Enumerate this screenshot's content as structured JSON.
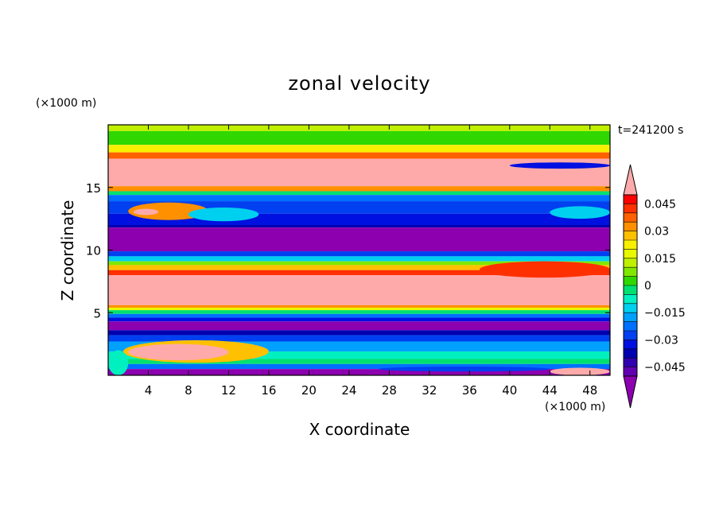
{
  "chart_data": {
    "type": "heatmap",
    "title": "zonal velocity",
    "xlabel": "X coordinate",
    "ylabel": "Z coordinate",
    "x_unit": "(×1000 m)",
    "y_unit": "(×1000 m)",
    "time_label": "t=241200 s",
    "xlim": [
      0,
      50
    ],
    "ylim": [
      0,
      20
    ],
    "x_ticks": [
      4,
      8,
      12,
      16,
      20,
      24,
      28,
      32,
      36,
      40,
      44,
      48
    ],
    "y_ticks": [
      5,
      10,
      15
    ],
    "colorbar": {
      "ticks": [
        0.045,
        0.03,
        0.015,
        0,
        -0.015,
        -0.03,
        -0.045
      ],
      "tick_labels": [
        "0.045",
        "0.03",
        "0.015",
        "0",
        "−0.015",
        "−0.03",
        "−0.045"
      ],
      "levels": [
        0.05,
        0.045,
        0.04,
        0.035,
        0.03,
        0.025,
        0.02,
        0.015,
        0.01,
        0.005,
        0,
        -0.005,
        -0.01,
        -0.015,
        -0.02,
        -0.025,
        -0.03,
        -0.035,
        -0.04,
        -0.045,
        -0.05
      ],
      "colors": [
        "#ff0000",
        "#ff3000",
        "#ff6000",
        "#ff9000",
        "#ffc000",
        "#f8f000",
        "#e8f800",
        "#c0f000",
        "#80e800",
        "#30d800",
        "#00e070",
        "#00f0c0",
        "#00d0f0",
        "#00a0ff",
        "#0070ff",
        "#0040f0",
        "#0010e0",
        "#0000b0",
        "#3000b0",
        "#6000b0"
      ],
      "over_color": "#ffaaaa",
      "under_color": "#8c00b0"
    },
    "bands": [
      {
        "z_bottom": 19.5,
        "z_top": 20,
        "color": "#c0f000"
      },
      {
        "z_bottom": 18.4,
        "z_top": 19.5,
        "color": "#30d800"
      },
      {
        "z_bottom": 17.8,
        "z_top": 18.4,
        "color": "#f8f000"
      },
      {
        "z_bottom": 17.3,
        "z_top": 17.8,
        "color": "#ff6000"
      },
      {
        "z_bottom": 15.1,
        "z_top": 17.3,
        "color": "#ffaaaa"
      },
      {
        "z_bottom": 14.7,
        "z_top": 15.1,
        "color": "#ff9000"
      },
      {
        "z_bottom": 14.4,
        "z_top": 14.7,
        "color": "#00e070"
      },
      {
        "z_bottom": 13.9,
        "z_top": 14.4,
        "color": "#0070ff"
      },
      {
        "z_bottom": 12.9,
        "z_top": 13.9,
        "color": "#0040f0"
      },
      {
        "z_bottom": 12.0,
        "z_top": 12.9,
        "color": "#0010e0"
      },
      {
        "z_bottom": 11.8,
        "z_top": 12.0,
        "color": "#0000b0"
      },
      {
        "z_bottom": 9.9,
        "z_top": 11.8,
        "color": "#8c00b0"
      },
      {
        "z_bottom": 9.5,
        "z_top": 9.9,
        "color": "#0040f0"
      },
      {
        "z_bottom": 9.1,
        "z_top": 9.5,
        "color": "#00d0f0"
      },
      {
        "z_bottom": 8.8,
        "z_top": 9.1,
        "color": "#80e800"
      },
      {
        "z_bottom": 8.4,
        "z_top": 8.8,
        "color": "#ffc000"
      },
      {
        "z_bottom": 8.0,
        "z_top": 8.4,
        "color": "#ff3000"
      },
      {
        "z_bottom": 5.6,
        "z_top": 8.0,
        "color": "#ffaaaa"
      },
      {
        "z_bottom": 5.4,
        "z_top": 5.6,
        "color": "#ff9000"
      },
      {
        "z_bottom": 5.2,
        "z_top": 5.4,
        "color": "#e8f800"
      },
      {
        "z_bottom": 4.9,
        "z_top": 5.2,
        "color": "#00e070"
      },
      {
        "z_bottom": 4.6,
        "z_top": 4.9,
        "color": "#0070ff"
      },
      {
        "z_bottom": 4.3,
        "z_top": 4.6,
        "color": "#0010e0"
      },
      {
        "z_bottom": 3.6,
        "z_top": 4.3,
        "color": "#8c00b0"
      },
      {
        "z_bottom": 3.2,
        "z_top": 3.6,
        "color": "#0000b0"
      },
      {
        "z_bottom": 2.7,
        "z_top": 3.2,
        "color": "#0040f0"
      },
      {
        "z_bottom": 1.9,
        "z_top": 2.7,
        "color": "#00a0ff"
      },
      {
        "z_bottom": 1.3,
        "z_top": 1.9,
        "color": "#00f0c0"
      },
      {
        "z_bottom": 0.9,
        "z_top": 1.3,
        "color": "#00e070"
      },
      {
        "z_bottom": 0.5,
        "z_top": 0.9,
        "color": "#0070ff"
      },
      {
        "z_bottom": 0.0,
        "z_top": 0.5,
        "color": "#8c00b0"
      }
    ],
    "features": [
      {
        "x": [
          1.5,
          16
        ],
        "z": [
          1.0,
          2.8
        ],
        "color": "#ffc000"
      },
      {
        "x": [
          2,
          12
        ],
        "z": [
          1.2,
          2.5
        ],
        "color": "#ffaaaa"
      },
      {
        "x": [
          2,
          10
        ],
        "z": [
          12.4,
          13.8
        ],
        "color": "#ff9000"
      },
      {
        "x": [
          2.5,
          5
        ],
        "z": [
          12.8,
          13.3
        ],
        "color": "#ffaaaa"
      },
      {
        "x": [
          8,
          15
        ],
        "z": [
          12.3,
          13.4
        ],
        "color": "#00d0f0"
      },
      {
        "x": [
          37,
          50
        ],
        "z": [
          7.8,
          9.1
        ],
        "color": "#ff3000"
      },
      {
        "x": [
          40,
          50
        ],
        "z": [
          16.5,
          17.0
        ],
        "color": "#0010e0"
      },
      {
        "x": [
          44,
          50
        ],
        "z": [
          12.5,
          13.5
        ],
        "color": "#00d0f0"
      },
      {
        "x": [
          27,
          44
        ],
        "z": [
          0.3,
          0.7
        ],
        "color": "#0040f0"
      },
      {
        "x": [
          44,
          50
        ],
        "z": [
          0.0,
          0.6
        ],
        "color": "#ffaaaa"
      },
      {
        "x": [
          0,
          2
        ],
        "z": [
          0.0,
          2.0
        ],
        "color": "#00f0c0"
      }
    ]
  }
}
